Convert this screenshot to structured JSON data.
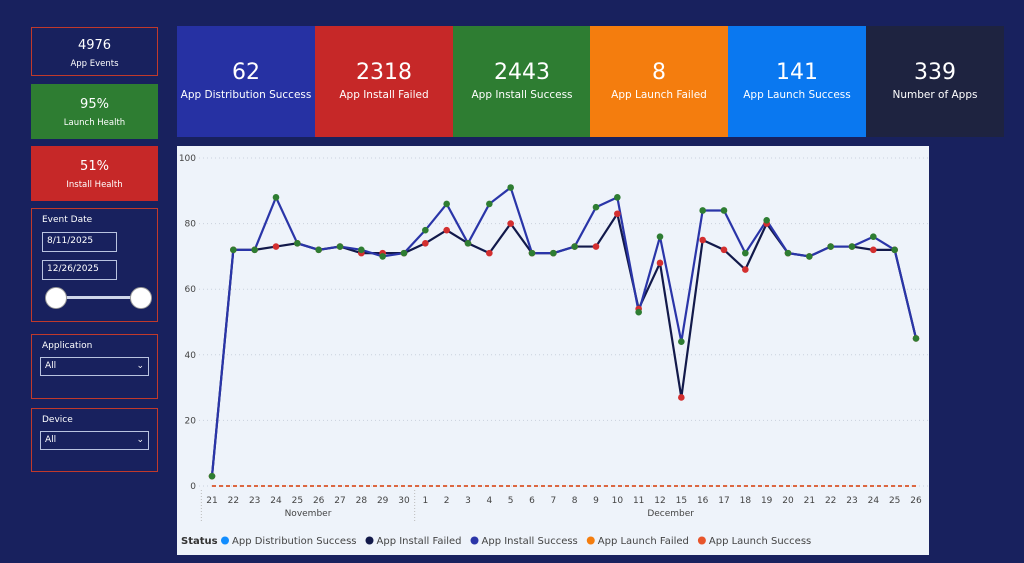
{
  "cards": [
    {
      "value": "4976",
      "label": "App Events"
    },
    {
      "value": "95%",
      "label": "Launch Health"
    },
    {
      "value": "51%",
      "label": "Install Health"
    }
  ],
  "kpis": [
    {
      "value": "62",
      "label": "App Distribution Success"
    },
    {
      "value": "2318",
      "label": "App Install Failed"
    },
    {
      "value": "2443",
      "label": "App Install Success"
    },
    {
      "value": "8",
      "label": "App Launch Failed"
    },
    {
      "value": "141",
      "label": "App Launch Success"
    },
    {
      "value": "339",
      "label": "Number of Apps"
    }
  ],
  "slicers": {
    "date": {
      "title": "Event Date",
      "start": "8/11/2025",
      "end": "12/26/2025"
    },
    "application": {
      "title": "Application",
      "value": "All"
    },
    "device": {
      "title": "Device",
      "value": "All"
    }
  },
  "chart_data": {
    "type": "line",
    "categories": [
      "21",
      "22",
      "23",
      "24",
      "25",
      "26",
      "27",
      "28",
      "29",
      "30",
      "1",
      "2",
      "3",
      "4",
      "5",
      "6",
      "7",
      "8",
      "9",
      "10",
      "11",
      "12",
      "15",
      "16",
      "17",
      "18",
      "19",
      "20",
      "21",
      "22",
      "23",
      "24",
      "25",
      "26"
    ],
    "x_groups": [
      {
        "label": "November",
        "count": 10
      },
      {
        "label": "December",
        "count": 24
      }
    ],
    "ylim": [
      0,
      100
    ],
    "yticks": [
      0,
      20,
      40,
      60,
      80,
      100
    ],
    "grid": true,
    "legend_title": "Status",
    "series": [
      {
        "name": "App Distribution Success",
        "color": "#118dff",
        "dashed": true,
        "values": [
          0,
          0,
          0,
          0,
          0,
          0,
          0,
          0,
          0,
          0,
          0,
          0,
          0,
          0,
          0,
          0,
          0,
          0,
          0,
          0,
          0,
          0,
          0,
          0,
          0,
          0,
          0,
          0,
          0,
          0,
          0,
          0,
          0,
          0
        ]
      },
      {
        "name": "App Install Failed",
        "color": "#12194a",
        "marker_color": "#d32f2f",
        "values": [
          3,
          72,
          72,
          73,
          74,
          72,
          73,
          71,
          71,
          71,
          74,
          78,
          74,
          71,
          80,
          71,
          71,
          73,
          73,
          83,
          54,
          68,
          27,
          75,
          72,
          66,
          80,
          71,
          70,
          73,
          73,
          72,
          72,
          45
        ]
      },
      {
        "name": "App Install Success",
        "color": "#2a35a8",
        "marker_color": "#2e7d32",
        "values": [
          3,
          72,
          72,
          88,
          74,
          72,
          73,
          72,
          70,
          71,
          78,
          86,
          74,
          86,
          91,
          71,
          71,
          73,
          85,
          88,
          53,
          76,
          44,
          84,
          84,
          71,
          81,
          71,
          70,
          73,
          73,
          76,
          72,
          45
        ]
      },
      {
        "name": "App Launch Failed",
        "color": "#f47d0e",
        "dashed": true,
        "values": [
          0,
          0,
          0,
          0,
          0,
          0,
          0,
          0,
          0,
          0,
          0,
          0,
          0,
          0,
          0,
          0,
          0,
          0,
          0,
          0,
          0,
          0,
          0,
          0,
          0,
          0,
          0,
          0,
          0,
          0,
          0,
          0,
          0,
          0
        ]
      },
      {
        "name": "App Launch Success",
        "color": "#e8552b",
        "dashed": true,
        "values": [
          0,
          0,
          0,
          0,
          0,
          0,
          0,
          0,
          0,
          0,
          0,
          0,
          0,
          0,
          0,
          0,
          0,
          0,
          0,
          0,
          0,
          0,
          0,
          0,
          0,
          0,
          0,
          0,
          0,
          0,
          0,
          0,
          0,
          0
        ]
      }
    ]
  }
}
